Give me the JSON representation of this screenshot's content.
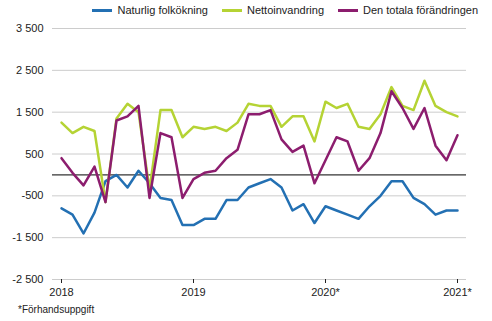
{
  "chart_data": {
    "type": "line",
    "categories": [
      "2018",
      null,
      null,
      null,
      null,
      null,
      null,
      null,
      null,
      null,
      null,
      null,
      "2019",
      null,
      null,
      null,
      null,
      null,
      null,
      null,
      null,
      null,
      null,
      null,
      "2020*",
      null,
      null,
      null,
      null,
      null,
      null,
      null,
      null,
      null,
      null,
      null,
      "2021*"
    ],
    "series": [
      {
        "name": "Naturlig folkökning",
        "color": "#2370b3",
        "values": [
          -800,
          -950,
          -1400,
          -900,
          -150,
          0,
          -300,
          100,
          -200,
          -550,
          -600,
          -1200,
          -1200,
          -1050,
          -1050,
          -600,
          -600,
          -300,
          -200,
          -100,
          -300,
          -850,
          -700,
          -1150,
          -750,
          -850,
          -950,
          -1050,
          -750,
          -500,
          -150,
          -150,
          -550,
          -700,
          -950,
          -850,
          -850
        ]
      },
      {
        "name": "Nettoinvandring",
        "color": "#b5d334",
        "values": [
          1250,
          1000,
          1150,
          1050,
          -650,
          1350,
          1700,
          1500,
          -350,
          1550,
          1550,
          900,
          1150,
          1100,
          1150,
          1050,
          1250,
          1700,
          1650,
          1650,
          1150,
          1400,
          1400,
          800,
          1750,
          1600,
          1700,
          1150,
          1100,
          1450,
          2100,
          1650,
          1550,
          2250,
          1650,
          1500,
          1400
        ]
      },
      {
        "name": "Den totala förändringen",
        "color": "#8c1d6e",
        "values": [
          400,
          50,
          -250,
          200,
          -650,
          1300,
          1400,
          1650,
          -550,
          1000,
          900,
          -550,
          -100,
          50,
          100,
          400,
          600,
          1450,
          1450,
          1550,
          850,
          550,
          700,
          -200,
          350,
          900,
          800,
          100,
          400,
          1000,
          2000,
          1600,
          1100,
          1600,
          700,
          350,
          950
        ]
      }
    ],
    "ylim": [
      -2500,
      3500
    ],
    "yticks": [
      {
        "value": -2500,
        "label": "-2 500"
      },
      {
        "value": -1500,
        "label": "-1 500"
      },
      -500,
      500,
      {
        "value": 1500,
        "label": "1 500"
      },
      {
        "value": 2500,
        "label": "2 500"
      },
      {
        "value": 3500,
        "label": "3 500"
      }
    ],
    "grid": true,
    "legend": "top",
    "annotations": [
      "*Förhandsuppgift"
    ]
  }
}
